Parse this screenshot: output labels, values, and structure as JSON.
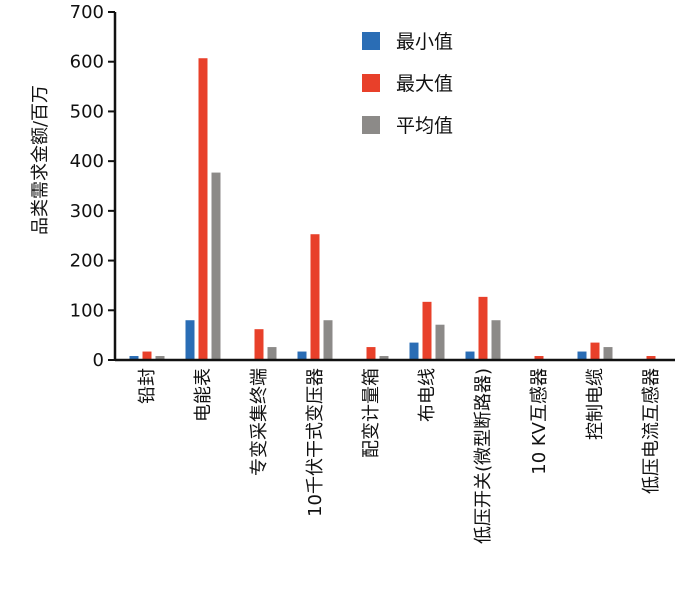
{
  "chart_data": {
    "type": "bar",
    "ylabel": "品类需求金额/百万",
    "ylim": [
      0,
      700
    ],
    "yticks": [
      "0",
      "100",
      "200",
      "300",
      "400",
      "500",
      "600",
      "700"
    ],
    "yticks_values": [
      0,
      100,
      200,
      300,
      400,
      500,
      600,
      700
    ],
    "categories": [
      "铅封",
      "电能表",
      "专变采集终端",
      "10千伏干式变压器",
      "配变计量箱",
      "布电线",
      "低压开关(微型断路器)",
      "10 KV互感器",
      "控制电缆",
      "低压电流互感器"
    ],
    "series": [
      {
        "name": "最小值",
        "color": "#2a6db5",
        "values": [
          8,
          80,
          0,
          17,
          0,
          35,
          17,
          0,
          17,
          0
        ]
      },
      {
        "name": "最大值",
        "color": "#e8402a",
        "values": [
          17,
          607,
          62,
          253,
          26,
          117,
          127,
          8,
          35,
          8
        ]
      },
      {
        "name": "平均值",
        "color": "#8c8a88",
        "values": [
          8,
          377,
          26,
          80,
          8,
          71,
          80,
          0,
          26,
          0
        ]
      }
    ],
    "legend_position": "top-right",
    "grid": false
  }
}
